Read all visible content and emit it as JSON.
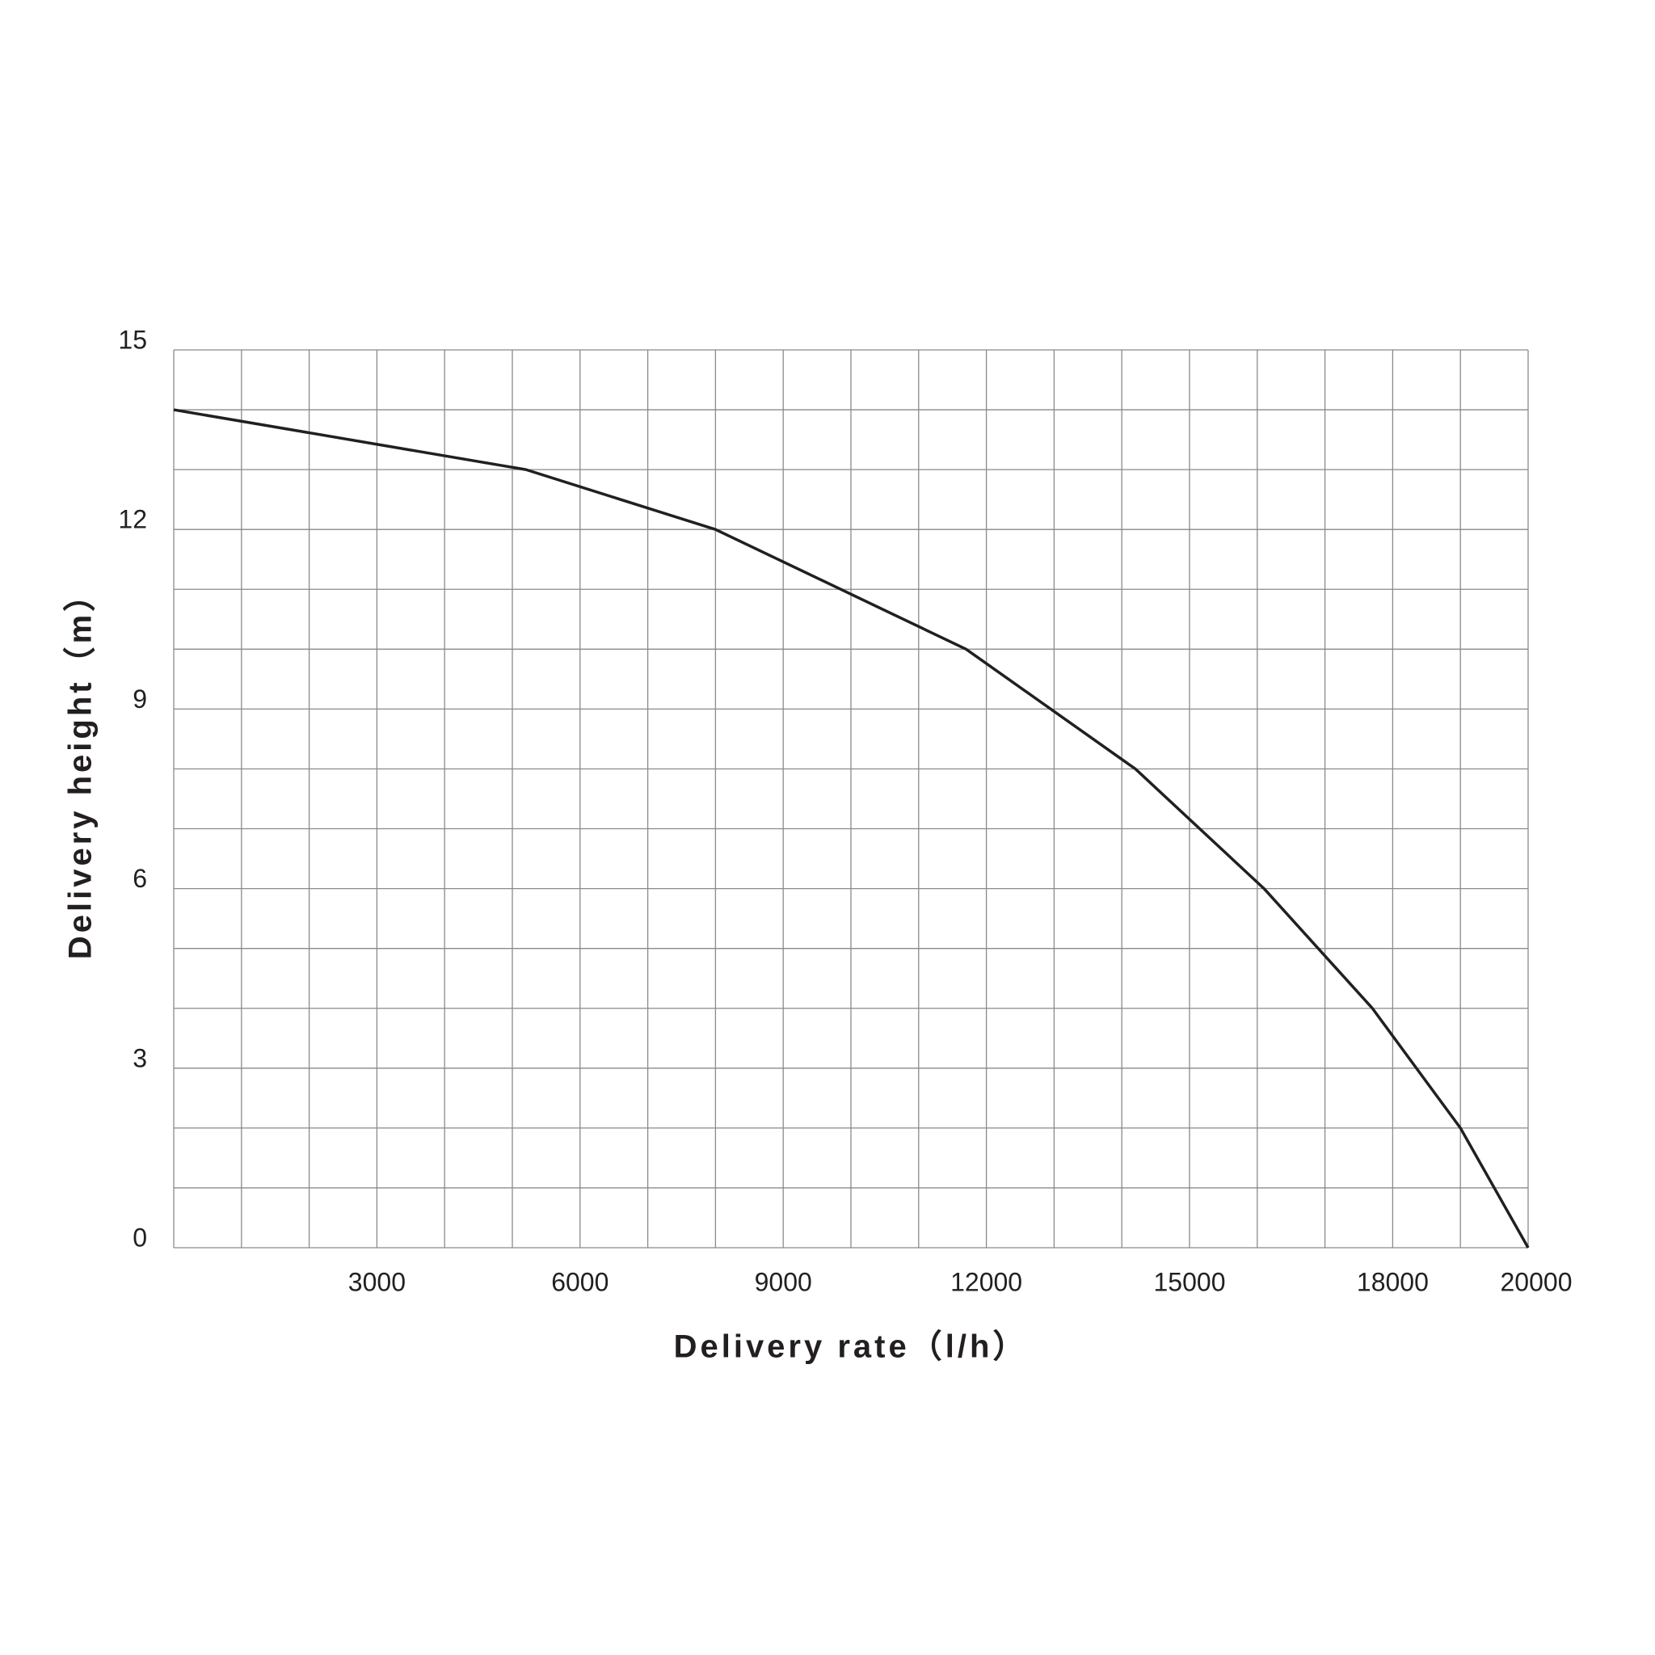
{
  "chart_data": {
    "type": "line",
    "x_label": "Delivery rate（l/h）",
    "y_label": "Delivery height（m）",
    "x": [
      0,
      5200,
      8000,
      11700,
      14200,
      16100,
      17700,
      19000,
      20000
    ],
    "series": [
      {
        "color": "#231f20",
        "values": [
          14,
          13,
          12,
          10,
          8,
          6,
          4,
          2,
          0
        ]
      }
    ],
    "xlim": [
      0,
      20000
    ],
    "ylim": [
      0,
      15
    ],
    "xticks": [
      3000,
      6000,
      9000,
      12000,
      15000,
      18000,
      20000
    ],
    "yticks": [
      0,
      3,
      6,
      9,
      12,
      15
    ],
    "xgrid": [
      0,
      1000,
      2000,
      3000,
      4000,
      5000,
      6000,
      7000,
      8000,
      9000,
      10000,
      11000,
      12000,
      13000,
      14000,
      15000,
      16000,
      17000,
      18000,
      19000,
      20000
    ],
    "ygrid": [
      0,
      1,
      2,
      3,
      4,
      5,
      6,
      7,
      8,
      9,
      10,
      11,
      12,
      13,
      14,
      15
    ],
    "grid": true
  }
}
